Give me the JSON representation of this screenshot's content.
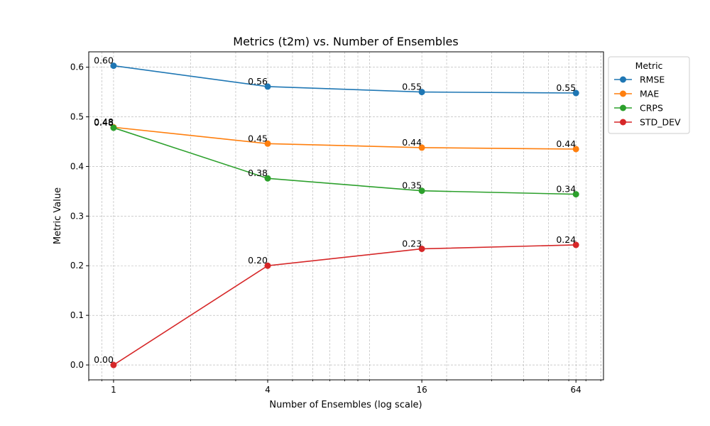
{
  "chart_data": {
    "type": "line",
    "title": "Metrics (t2m) vs. Number of Ensembles",
    "xlabel": "Number of Ensembles (log scale)",
    "ylabel": "Metric Value",
    "x_scale": "log2",
    "x": [
      1,
      4,
      16,
      64
    ],
    "x_tick_labels": [
      "1",
      "4",
      "16",
      "64"
    ],
    "xlim": [
      0.8,
      82
    ],
    "ylim": [
      -0.03,
      0.631
    ],
    "y_ticks": [
      0.0,
      0.1,
      0.2,
      0.3,
      0.4,
      0.5,
      0.6
    ],
    "y_tick_labels": [
      "0.0",
      "0.1",
      "0.2",
      "0.3",
      "0.4",
      "0.5",
      "0.6"
    ],
    "grid": true,
    "legend": {
      "title": "Metric",
      "placement": "outside-right"
    },
    "series": [
      {
        "name": "RMSE",
        "color": "#1f77b4",
        "values": [
          0.603,
          0.561,
          0.55,
          0.548
        ],
        "labels": [
          "0.60",
          "0.56",
          "0.55",
          "0.55"
        ]
      },
      {
        "name": "MAE",
        "color": "#ff7f0e",
        "values": [
          0.479,
          0.446,
          0.438,
          0.435
        ],
        "labels": [
          "0.48",
          "0.45",
          "0.44",
          "0.44"
        ]
      },
      {
        "name": "CRPS",
        "color": "#2ca02c",
        "values": [
          0.478,
          0.376,
          0.351,
          0.344
        ],
        "labels": [
          "0.48",
          "0.38",
          "0.35",
          "0.34"
        ]
      },
      {
        "name": "STD_DEV",
        "color": "#d62728",
        "values": [
          0.0,
          0.2,
          0.234,
          0.242
        ],
        "labels": [
          "0.00",
          "0.20",
          "0.23",
          "0.24"
        ]
      }
    ]
  }
}
